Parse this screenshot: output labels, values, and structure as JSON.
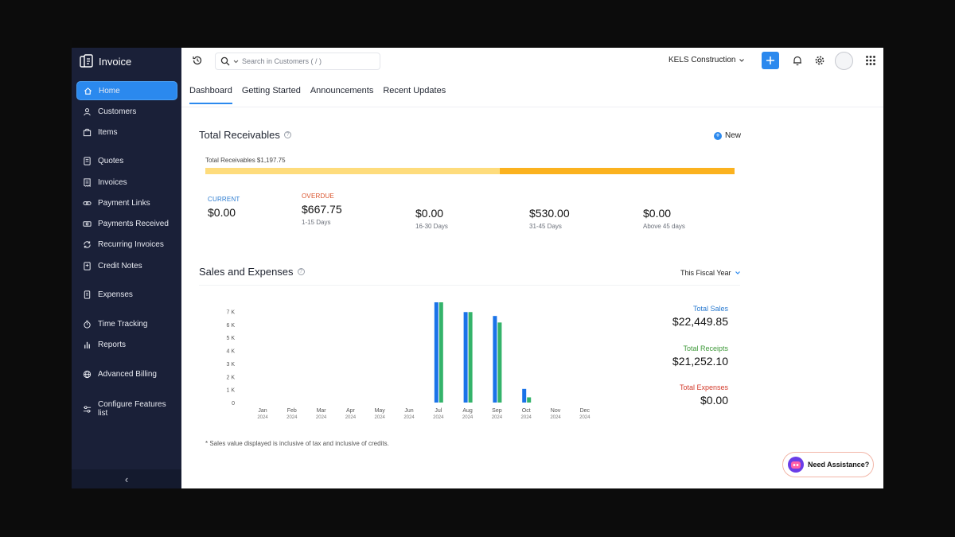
{
  "app": {
    "name": "Invoice"
  },
  "sidebar": {
    "items": [
      {
        "label": "Home",
        "icon": "home-icon",
        "active": true
      },
      {
        "label": "Customers",
        "icon": "user-icon"
      },
      {
        "label": "Items",
        "icon": "box-icon"
      },
      {
        "label": "Quotes",
        "icon": "document-icon"
      },
      {
        "label": "Invoices",
        "icon": "invoice-icon"
      },
      {
        "label": "Payment Links",
        "icon": "link-icon"
      },
      {
        "label": "Payments Received",
        "icon": "money-icon"
      },
      {
        "label": "Recurring Invoices",
        "icon": "recurring-icon"
      },
      {
        "label": "Credit Notes",
        "icon": "credit-note-icon"
      },
      {
        "label": "Expenses",
        "icon": "receipt-icon"
      },
      {
        "label": "Time Tracking",
        "icon": "stopwatch-icon"
      },
      {
        "label": "Reports",
        "icon": "bar-chart-icon"
      },
      {
        "label": "Advanced Billing",
        "icon": "globe-icon"
      },
      {
        "label": "Configure Features list",
        "icon": "sliders-icon"
      }
    ],
    "collapse_glyph": "‹"
  },
  "header": {
    "search_placeholder": "Search in Customers ( / )",
    "organization": "KELS Construction"
  },
  "tabs": [
    "Dashboard",
    "Getting Started",
    "Announcements",
    "Recent Updates"
  ],
  "receivables": {
    "title": "Total Receivables",
    "new_label": "New",
    "total_label": "Total Receivables $1,197.75",
    "current_fraction": 0.557,
    "buckets": [
      {
        "label": "CURRENT",
        "value": "$0.00",
        "sub": "",
        "color": "#2b7bd0"
      },
      {
        "label": "OVERDUE",
        "value": "$667.75",
        "sub": "1-15 Days",
        "color": "#d9532b"
      },
      {
        "label": "",
        "value": "$0.00",
        "sub": "16-30 Days"
      },
      {
        "label": "",
        "value": "$530.00",
        "sub": "31-45 Days"
      },
      {
        "label": "",
        "value": "$0.00",
        "sub": "Above 45 days"
      }
    ]
  },
  "sales": {
    "title": "Sales and Expenses",
    "period": "This Fiscal Year",
    "totals": [
      {
        "label": "Total Sales",
        "value": "$22,449.85",
        "color": "#2b7bd0"
      },
      {
        "label": "Total Receipts",
        "value": "$21,252.10",
        "color": "#3f9a3a"
      },
      {
        "label": "Total Expenses",
        "value": "$0.00",
        "color": "#d33b2c"
      }
    ],
    "footnote": "* Sales value displayed is inclusive of tax and inclusive of credits."
  },
  "chart_data": {
    "type": "bar",
    "categories": [
      "Jan",
      "Feb",
      "Mar",
      "Apr",
      "May",
      "Jun",
      "Jul",
      "Aug",
      "Sep",
      "Oct",
      "Nov",
      "Dec"
    ],
    "year": "2024",
    "y_ticks": [
      "0",
      "1 K",
      "2 K",
      "3 K",
      "4 K",
      "5 K",
      "6 K",
      "7 K"
    ],
    "ylim": [
      0,
      7700
    ],
    "series": [
      {
        "name": "Total Sales",
        "color": "#1a73e8",
        "values": [
          0,
          0,
          0,
          0,
          0,
          0,
          7700,
          6950,
          6650,
          1050,
          0,
          0
        ]
      },
      {
        "name": "Total Receipts",
        "color": "#34b36a",
        "values": [
          0,
          0,
          0,
          0,
          0,
          0,
          7700,
          6950,
          6150,
          400,
          0,
          0
        ]
      }
    ]
  },
  "assistant": {
    "label": "Need Assistance?"
  },
  "colors": {
    "accent": "#2b89ee",
    "sidebar": "#1a2038"
  }
}
